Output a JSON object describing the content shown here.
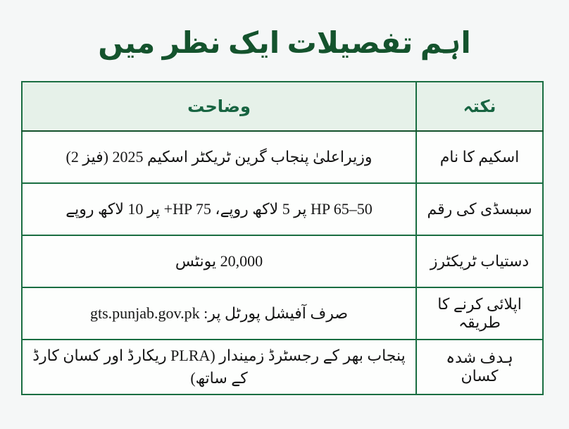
{
  "title": "اہم تفصیلات ایک نظر میں",
  "colors": {
    "title_green": "#14532d",
    "grid_green": "#1a6e42",
    "header_background": "#e6f1e9",
    "header_text_green": "#176441",
    "page_background": "#f5f7f7",
    "cell_background": "#fdfefd",
    "body_text": "#161616"
  },
  "table": {
    "headers": {
      "point": "نکتہ",
      "detail": "وضاحت"
    },
    "rows": [
      {
        "point": "اسکیم کا نام",
        "detail": "وزیراعلیٰ پنجاب گرین ٹریکٹر اسکیم 2025 (فیز 2)"
      },
      {
        "point": "سبسڈی کی رقم",
        "detail": "⁦HP 65–50⁩ پر 5 لاکھ روپے، ⁦+HP 75⁩ پر 10 لاکھ روپے"
      },
      {
        "point": "دستیاب ٹریکٹرز",
        "detail": "20,000 یونٹس"
      },
      {
        "point": "اپلائی کرنے کا طریقہ",
        "detail": "صرف آفیشل پورٹل پر: gts.punjab.gov.pk"
      },
      {
        "point": "ہدف شدہ کسان",
        "detail": "پنجاب بھر کے رجسٹرڈ زمیندار (PLRA ریکارڈ اور کسان کارڈ کے ساتھ)"
      }
    ]
  }
}
